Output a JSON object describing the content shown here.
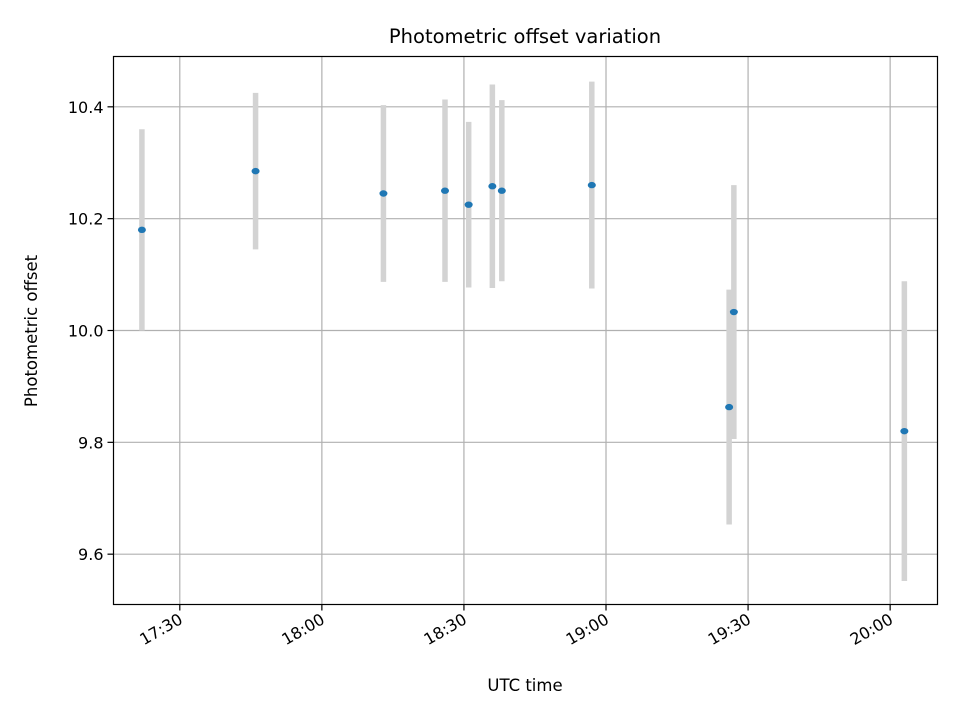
{
  "chart_data": {
    "type": "scatter",
    "title": "Photometric offset variation",
    "xlabel": "UTC time",
    "ylabel": "Photometric offset",
    "x_axis": "time",
    "xlim": [
      "17:16",
      "20:10"
    ],
    "ylim": [
      9.51,
      10.49
    ],
    "x_ticks": [
      "17:30",
      "18:00",
      "18:30",
      "19:00",
      "19:30",
      "20:00"
    ],
    "y_ticks": [
      "9.6",
      "9.8",
      "10.0",
      "10.2",
      "10.4"
    ],
    "grid": true,
    "colors": {
      "point": "#1f77b4",
      "errorbar": "#d3d3d3",
      "grid": "#b0b0b0"
    },
    "points": [
      {
        "x": "17:22",
        "y": 10.18,
        "err": 0.18
      },
      {
        "x": "17:46",
        "y": 10.285,
        "err": 0.14
      },
      {
        "x": "18:13",
        "y": 10.245,
        "err": 0.158
      },
      {
        "x": "18:26",
        "y": 10.25,
        "err": 0.163
      },
      {
        "x": "18:31",
        "y": 10.225,
        "err": 0.148
      },
      {
        "x": "18:36",
        "y": 10.258,
        "err": 0.182
      },
      {
        "x": "18:38",
        "y": 10.25,
        "err": 0.162
      },
      {
        "x": "18:57",
        "y": 10.26,
        "err": 0.185
      },
      {
        "x": "19:26",
        "y": 9.863,
        "err": 0.21
      },
      {
        "x": "19:27",
        "y": 10.033,
        "err": 0.227
      },
      {
        "x": "20:03",
        "y": 9.82,
        "err": 0.268
      }
    ]
  }
}
